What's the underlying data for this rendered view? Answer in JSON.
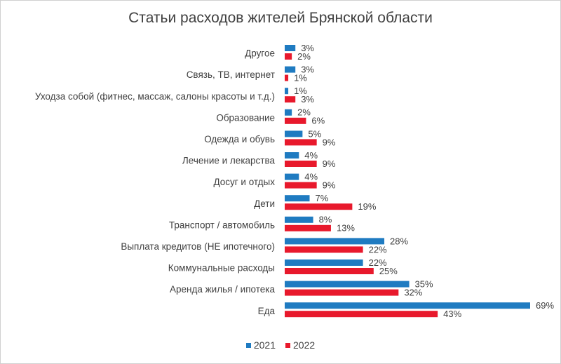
{
  "chart_data": {
    "type": "bar",
    "orientation": "horizontal",
    "title": "Статьи расходов жителей Брянской области",
    "categories": [
      "Другое",
      "Связь, ТВ, интернет",
      "Уходза собой (фитнес, массаж, салоны красоты и т.д.)",
      "Образование",
      "Одежда и обувь",
      "Лечение и лекарства",
      "Досуг и отдых",
      "Дети",
      "Транспорт / автомобиль",
      "Выплата кредитов (НЕ ипотечного)",
      "Коммунальные расходы",
      "Аренда жилья / ипотека",
      "Еда"
    ],
    "series": [
      {
        "name": "2021",
        "color": "#1f7bc1",
        "values": [
          3,
          3,
          1,
          2,
          5,
          4,
          4,
          7,
          8,
          28,
          22,
          35,
          69
        ],
        "labels": [
          "3%",
          "3%",
          "1%",
          "2%",
          "5%",
          "4%",
          "4%",
          "7%",
          "8%",
          "28%",
          "22%",
          "35%",
          "69%"
        ]
      },
      {
        "name": "2022",
        "color": "#e8192c",
        "values": [
          2,
          1,
          3,
          6,
          9,
          9,
          9,
          19,
          13,
          22,
          25,
          32,
          43
        ],
        "labels": [
          "2%",
          "1%",
          "3%",
          "6%",
          "9%",
          "9%",
          "9%",
          "19%",
          "13%",
          "22%",
          "25%",
          "32%",
          "43%"
        ]
      }
    ],
    "xlim": [
      0,
      69
    ],
    "grid": false,
    "legend_position": "bottom"
  }
}
